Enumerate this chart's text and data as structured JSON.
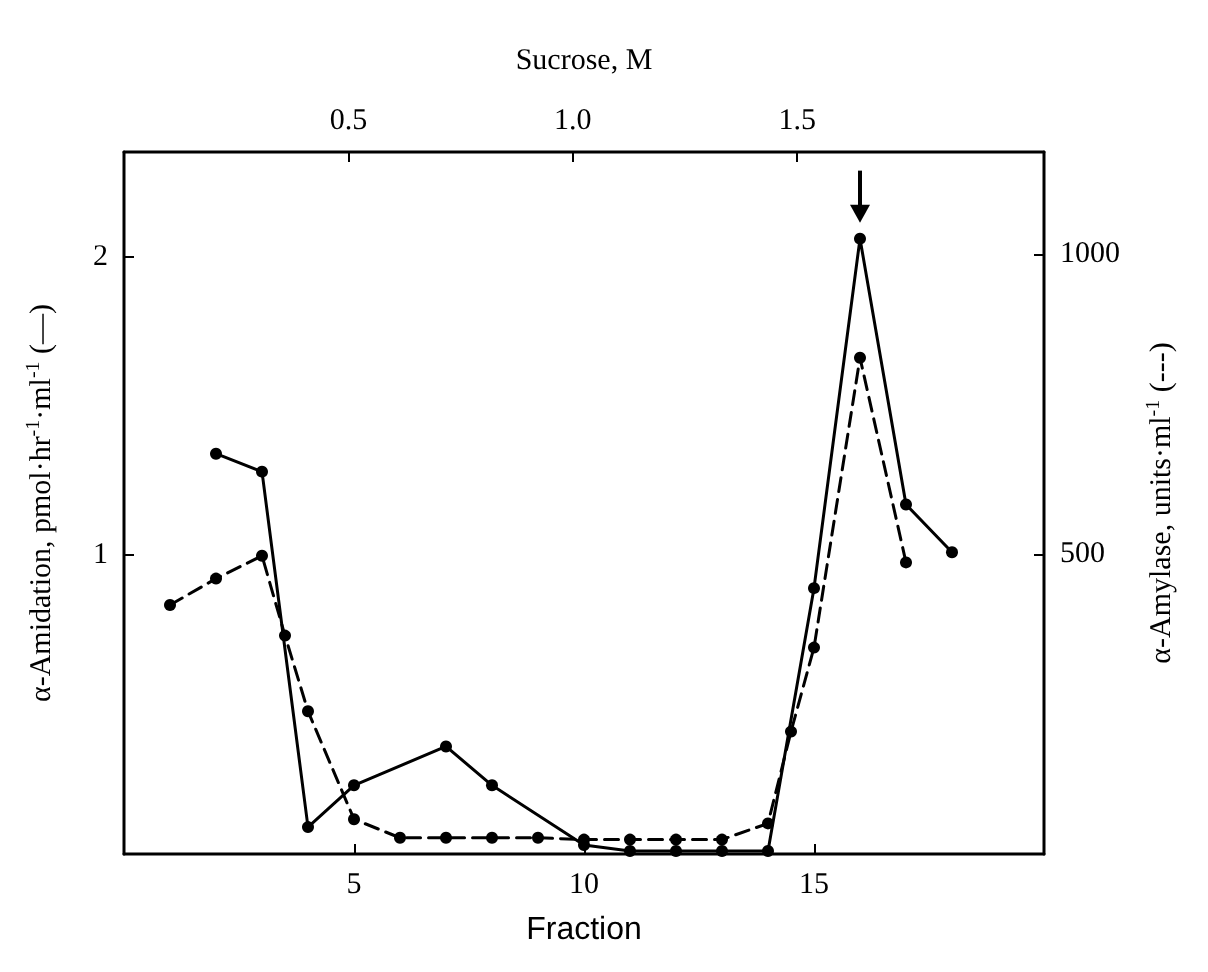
{
  "chart_data": {
    "type": "line",
    "xlabel": "Fraction",
    "ylabel": "α-Amidation, pmol·hr$^{-1}$·ml$^{-1}$ (—)",
    "y2label": "α-Amylase, units·ml$^{-1}$ (---)",
    "x2label": "Sucrose, M",
    "xlim": [
      0,
      20
    ],
    "xticks": [
      5,
      10,
      15
    ],
    "x2lim": [
      0,
      2.05
    ],
    "x2ticks": [
      0.5,
      {
        "value": 1,
        "label": "1.0"
      },
      1.5
    ],
    "ylim": [
      0,
      2.35
    ],
    "yticks": [
      1,
      2
    ],
    "y2lim": [
      0,
      1170
    ],
    "y2ticks": [
      500,
      1000
    ],
    "grid": false,
    "marker": "circle",
    "series": [
      {
        "color": "#000000",
        "line_style": "solid",
        "x": [
          2,
          3,
          4,
          5,
          7,
          8,
          10,
          11,
          12,
          13,
          14,
          15,
          16,
          17,
          18
        ],
        "values": [
          1.34,
          1.28,
          0.09,
          0.23,
          0.36,
          0.23,
          0.03,
          0.01,
          0.01,
          0.01,
          0.01,
          0.89,
          2.06,
          1.17,
          1.01
        ]
      },
      {
        "color": "#000000",
        "line_style": "dashed",
        "axis": "y2",
        "x": [
          1,
          2,
          3,
          3.5,
          4,
          5,
          6,
          7,
          8,
          9,
          10,
          11,
          12,
          13,
          14,
          14.5,
          15,
          16,
          17
        ],
        "values": [
          415,
          459,
          497,
          364,
          238,
          58,
          27,
          27,
          27,
          27,
          24,
          24,
          24,
          24,
          51,
          204,
          344,
          827,
          486
        ]
      }
    ]
  }
}
